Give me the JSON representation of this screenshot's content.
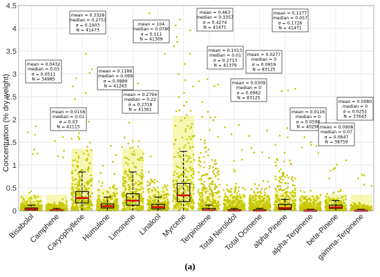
{
  "caption": "(a)",
  "chart_data": {
    "type": "scatter",
    "ylabel": "Concentration (% dry weight)",
    "ylim": [
      0,
      4.5
    ],
    "yticks": [
      0,
      0.5,
      1,
      1.5,
      2,
      2.5,
      3,
      3.5,
      4,
      4.5
    ],
    "ytick_labels": [
      "0",
      "0.5",
      "1",
      "1.5",
      "2",
      "2.5",
      "3",
      "3.5",
      "4",
      "4.5"
    ],
    "grid": true,
    "point_color": "#c8c800",
    "box_color": "#000000",
    "median_color": "#d40000",
    "categories": [
      {
        "name": "Bisabolol",
        "stats": [
          "mean = 0.0432",
          "median = 0.03",
          "σ = 0.0511",
          "N = 34985"
        ],
        "mean": 0.0432,
        "median": 0.03,
        "sd": 0.0511,
        "N": 34985,
        "max": 1.95,
        "q1": 0.01,
        "q3": 0.06,
        "whisker_high": 0.12
      },
      {
        "name": "Camphene",
        "stats": [
          "mean = 0.0158",
          "median = 0.01",
          "σ = 0.03",
          "N = 41115"
        ],
        "mean": 0.0158,
        "median": 0.01,
        "sd": 0.03,
        "N": 41115,
        "max": 1.9,
        "q1": 0.0,
        "q3": 0.02,
        "whisker_high": 0.05
      },
      {
        "name": "Caryophyllene",
        "stats": [
          "mean = 0.3328",
          "median = 0.2753",
          "σ = 0.2403",
          "N = 41473"
        ],
        "mean": 0.3328,
        "median": 0.2753,
        "sd": 0.2403,
        "N": 41473,
        "max": 3.8,
        "q1": 0.17,
        "q3": 0.42,
        "whisker_high": 0.85
      },
      {
        "name": "Humulene",
        "stats": [
          "mean = 0.1186",
          "median = 0.099",
          "σ = 0.0889",
          "N = 41263"
        ],
        "mean": 0.1186,
        "median": 0.099,
        "sd": 0.0889,
        "N": 41263,
        "max": 1.45,
        "q1": 0.06,
        "q3": 0.15,
        "whisker_high": 0.3
      },
      {
        "name": "Limonene",
        "stats": [
          "mean = 0.2794",
          "median = 0.22",
          "σ = 0.2318",
          "N = 41361"
        ],
        "mean": 0.2794,
        "median": 0.22,
        "sd": 0.2318,
        "N": 41361,
        "max": 2.8,
        "q1": 0.12,
        "q3": 0.37,
        "whisker_high": 0.85
      },
      {
        "name": "Linalool",
        "stats": [
          "mean = 104",
          "median = 0.0780",
          "σ = 0.111",
          "N = 41309"
        ],
        "mean": 104,
        "median": 0.078,
        "sd": 0.111,
        "N": 41309,
        "max": 4.5,
        "q1": 0.04,
        "q3": 0.14,
        "whisker_high": 0.3
      },
      {
        "name": "Myrcene",
        "stats": [
          "mean = 0.463",
          "median = 0.3357",
          "σ = 0.4274",
          "N = 41471"
        ],
        "mean": 0.463,
        "median": 0.3357,
        "sd": 0.4274,
        "N": 41471,
        "max": 4.5,
        "q1": 0.2,
        "q3": 0.6,
        "whisker_high": 1.3
      },
      {
        "name": "Terpinolene",
        "stats": [
          "mean = 0.1013",
          "median = 0.01",
          "σ = 0.2713",
          "N = 41379"
        ],
        "mean": 0.1013,
        "median": 0.01,
        "sd": 0.2713,
        "N": 41379,
        "max": 2.95,
        "q1": 0.0,
        "q3": 0.05,
        "whisker_high": 0.12
      },
      {
        "name": "Total Nerolidol",
        "stats": [
          "mean = 0.0309",
          "median = 0",
          "σ = 0.0962",
          "N = 83125"
        ],
        "mean": 0.0309,
        "median": 0,
        "sd": 0.0962,
        "N": 83125,
        "max": 1.95,
        "q1": 0.0,
        "q3": 0.02,
        "whisker_high": 0.05
      },
      {
        "name": "Total Ocimene",
        "stats": [
          "mean = 0.0277",
          "median = 0",
          "σ = 0.0919",
          "N = 83125"
        ],
        "mean": 0.0277,
        "median": 0,
        "sd": 0.0919,
        "N": 83125,
        "max": 1.95,
        "q1": 0.0,
        "q3": 0.02,
        "whisker_high": 0.05
      },
      {
        "name": "alpha-Pinene",
        "stats": [
          "mean = 0.1177",
          "median = 0.057",
          "σ = 0.1726",
          "N = 41471"
        ],
        "mean": 0.1177,
        "median": 0.057,
        "sd": 0.1726,
        "N": 41471,
        "max": 2.9,
        "q1": 0.03,
        "q3": 0.14,
        "whisker_high": 0.25
      },
      {
        "name": "alpha-Terpinene",
        "stats": [
          "mean = 0.0116",
          "median = 0",
          "σ = 0.0598",
          "N = 40296"
        ],
        "mean": 0.0116,
        "median": 0,
        "sd": 0.0598,
        "N": 40296,
        "max": 1.9,
        "q1": 0.0,
        "q3": 0.01,
        "whisker_high": 0.03
      },
      {
        "name": "beta-Pinene",
        "stats": [
          "mean = 0.0908",
          "median = 0.07",
          "σ = 0.0647",
          "N = 38759"
        ],
        "mean": 0.0908,
        "median": 0.07,
        "sd": 0.0647,
        "N": 38759,
        "max": 1.2,
        "q1": 0.05,
        "q3": 0.12,
        "whisker_high": 0.22
      },
      {
        "name": "gamma-Terpinene",
        "stats": [
          "mean = 0.0080",
          "median = 0",
          "σ = 0.0251",
          "N = 37643"
        ],
        "mean": 0.008,
        "median": 0,
        "sd": 0.0251,
        "N": 37643,
        "max": 0.85,
        "q1": 0.0,
        "q3": 0.01,
        "whisker_high": 0.03
      }
    ]
  }
}
